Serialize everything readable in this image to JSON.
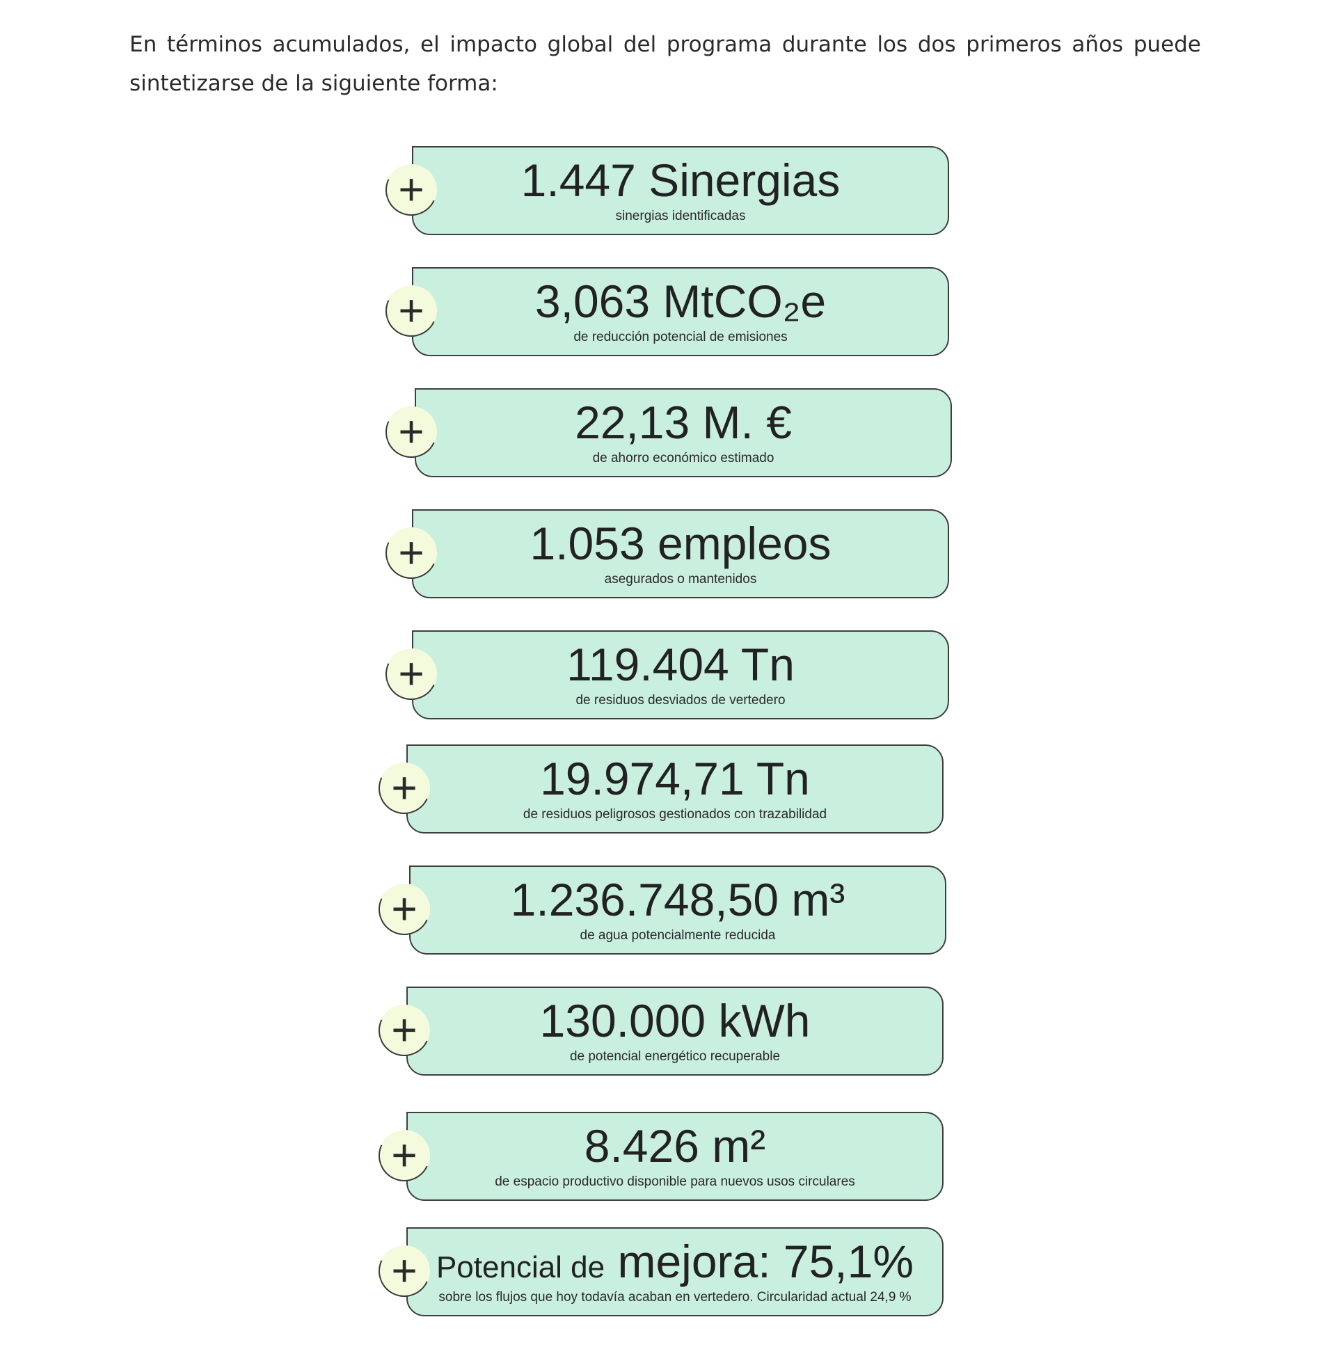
{
  "intro_text": "En términos acumulados, el impacto global del programa durante los dos primeros años puede sintetizarse de la siguiente forma:",
  "plus_symbol": "+",
  "colors": {
    "card_fill": "#c9efdf",
    "card_border": "#3f3f3f",
    "plus_fill": "#f4fbdc",
    "text": "#222222"
  },
  "metrics": [
    {
      "main": "1.447 Sinergias",
      "sub": "sinergias identificadas"
    },
    {
      "main": "3,063 MtCO₂e",
      "sub": "de reducción potencial de emisiones"
    },
    {
      "main": "22,13 M. €",
      "sub": "de ahorro económico estimado"
    },
    {
      "main": "1.053 empleos",
      "sub": "asegurados o mantenidos"
    },
    {
      "main": "119.404 Tn",
      "sub": "de residuos desviados de vertedero"
    },
    {
      "main": "19.974,71 Tn",
      "sub": "de residuos peligrosos gestionados con trazabilidad"
    },
    {
      "main": "1.236.748,50 m³",
      "sub": "de agua potencialmente reducida"
    },
    {
      "main": "130.000 kWh",
      "sub": "de potencial energético recuperable"
    },
    {
      "main": "8.426 m²",
      "sub": "de espacio productivo disponible para nuevos usos circulares"
    },
    {
      "main_prefix": "Potencial de",
      "main": "mejora: 75,1%",
      "sub": "sobre los flujos que hoy todavía acaban en vertedero. Circularidad actual 24,9 %"
    }
  ]
}
